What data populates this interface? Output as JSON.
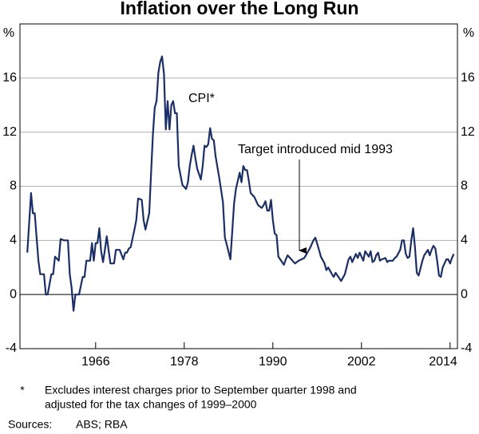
{
  "chart_data": {
    "type": "line",
    "title": "Inflation over the Long Run",
    "y_unit": "%",
    "x": [
      1956.75,
      1957.25,
      1957.5,
      1957.75,
      1958.25,
      1958.5,
      1959,
      1959.25,
      1959.5,
      1960,
      1960.25,
      1960.5,
      1961,
      1961.25,
      1961.75,
      1962.25,
      1962.5,
      1962.75,
      1963,
      1963.25,
      1963.75,
      1964.25,
      1964.5,
      1964.75,
      1965.25,
      1965.5,
      1965.75,
      1966,
      1966.25,
      1966.5,
      1966.75,
      1967,
      1967.25,
      1967.5,
      1967.75,
      1968,
      1968.5,
      1968.75,
      1969.25,
      1969.75,
      1970,
      1970.25,
      1970.5,
      1970.75,
      1971.25,
      1971.5,
      1971.75,
      1972.25,
      1972.5,
      1972.75,
      1973.25,
      1973.5,
      1973.75,
      1974,
      1974.25,
      1974.5,
      1974.75,
      1975,
      1975.25,
      1975.5,
      1975.75,
      1976,
      1976.25,
      1976.5,
      1976.75,
      1977,
      1977.25,
      1977.5,
      1977.75,
      1978.25,
      1978.5,
      1978.75,
      1979,
      1979.25,
      1979.5,
      1979.75,
      1980.25,
      1980.5,
      1980.75,
      1981,
      1981.25,
      1981.5,
      1981.75,
      1982,
      1982.25,
      1982.75,
      1983.25,
      1983.5,
      1983.75,
      1984.25,
      1984.75,
      1985,
      1985.5,
      1985.75,
      1986,
      1986.25,
      1986.5,
      1986.75,
      1987,
      1987.5,
      1987.75,
      1988,
      1988.5,
      1988.75,
      1989,
      1989.25,
      1989.5,
      1989.75,
      1990,
      1990.25,
      1990.5,
      1990.75,
      1991,
      1991.5,
      1991.75,
      1992,
      1992.5,
      1993,
      1993.5,
      1994.25,
      1995,
      1995.5,
      1995.75,
      1996.25,
      1996.5,
      1997,
      1997.25,
      1997.5,
      1998,
      1998.25,
      1998.5,
      1999,
      1999.25,
      1999.75,
      2000.25,
      2000.5,
      2000.75,
      2001.25,
      2001.5,
      2001.75,
      2002.25,
      2002.5,
      2002.75,
      2003,
      2003.25,
      2003.5,
      2003.75,
      2004,
      2004.25,
      2004.5,
      2004.75,
      2005.25,
      2005.5,
      2005.75,
      2006.25,
      2006.5,
      2006.75,
      2007.25,
      2007.5,
      2007.75,
      2008,
      2008.25,
      2008.5,
      2008.75,
      2009,
      2009.25,
      2009.5,
      2009.75,
      2010.25,
      2010.5,
      2010.75,
      2011,
      2011.25,
      2011.5,
      2011.75,
      2012,
      2012.25,
      2012.5,
      2012.75,
      2013,
      2013.25,
      2013.5,
      2013.75,
      2014,
      2014.25,
      2014.5
    ],
    "series": [
      {
        "name": "CPI*",
        "color": "#1b2f66",
        "values": [
          3.1,
          7.5,
          6,
          6,
          2.5,
          1.5,
          1.5,
          0,
          0,
          1.5,
          1.5,
          2.8,
          2.5,
          4.1,
          4.0,
          4.0,
          1.5,
          0.5,
          -1.2,
          0,
          0,
          1.3,
          1.3,
          2.5,
          2.5,
          3.8,
          2.5,
          3.8,
          3.8,
          4.9,
          3.2,
          2.4,
          3.3,
          4.3,
          3.3,
          2.3,
          2.3,
          3.3,
          3.3,
          2.6,
          3.1,
          3.1,
          3.4,
          3.5,
          4.8,
          5.5,
          7.1,
          7,
          5.5,
          4.8,
          6,
          8.9,
          11.8,
          13.8,
          14.3,
          16.4,
          17.2,
          17.6,
          16.3,
          12.2,
          14.3,
          12.2,
          14,
          14.3,
          13.4,
          13.4,
          9.5,
          8.8,
          8.1,
          7.8,
          8.3,
          9.5,
          10.3,
          11,
          10.1,
          9.3,
          8.5,
          9.5,
          11,
          10.9,
          11.1,
          12.3,
          11.5,
          11.4,
          10.2,
          8.6,
          6.8,
          4.2,
          3.7,
          2.6,
          6.7,
          7.8,
          9,
          8.3,
          9.5,
          9.2,
          9.2,
          8.4,
          7.5,
          7.2,
          6.9,
          6.6,
          6.4,
          6.6,
          6.9,
          6.2,
          6.2,
          7.0,
          5.5,
          4.5,
          4.4,
          2.8,
          2.6,
          2.2,
          2.6,
          2.9,
          2.6,
          2.3,
          2.5,
          2.7,
          3.4,
          4.0,
          4.2,
          3.3,
          2.8,
          2.3,
          1.8,
          2.0,
          1.5,
          1.3,
          1.6,
          1.2,
          1.0,
          1.5,
          2.6,
          2.8,
          2.4,
          3.0,
          2.7,
          3.1,
          2.5,
          3.2,
          3.0,
          2.8,
          3.2,
          2.4,
          2.5,
          2.9,
          3.1,
          2.5,
          2.6,
          2.7,
          2.4,
          2.5,
          2.5,
          2.7,
          2.8,
          3.3,
          4.0,
          4.0,
          3.0,
          2.7,
          2.8,
          4.0,
          4.9,
          3.5,
          1.6,
          1.4,
          2.5,
          2.9,
          3.1,
          3.3,
          2.9,
          3.3,
          3.6,
          3.4,
          2.5,
          1.4,
          1.3,
          2.0,
          2.3,
          2.6,
          2.6,
          2.3,
          2.7,
          3.0
        ]
      }
    ],
    "xlim": [
      1955.75,
      2015
    ],
    "xticks": [
      1966,
      1978,
      1990,
      2002,
      2014
    ],
    "ylim": [
      -4,
      20
    ],
    "yticks": [
      -4,
      0,
      4,
      8,
      12,
      16
    ],
    "grid": true,
    "annotations": [
      "Target introduced mid 1993"
    ],
    "footnote": {
      "marker": "*",
      "lines": [
        "Excludes interest charges prior to September quarter 1998 and",
        "adjusted for the tax changes of 1999–2000"
      ]
    },
    "sources": {
      "label": "Sources:",
      "text": "ABS; RBA"
    }
  }
}
